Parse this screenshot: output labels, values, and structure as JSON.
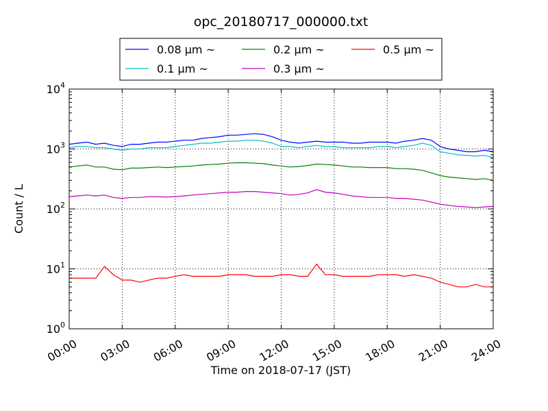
{
  "chart_data": {
    "type": "line",
    "title": "opc_20180717_000000.txt",
    "xlabel": "Time on 2018-07-17 (JST)",
    "ylabel": "Count / L",
    "y_scale": "log",
    "ylim": [
      1,
      10000
    ],
    "xlim": [
      "00:00",
      "24:00"
    ],
    "x_unit": "hours",
    "x_ticks": [
      {
        "h": 0,
        "label": "00:00"
      },
      {
        "h": 3,
        "label": "03:00"
      },
      {
        "h": 6,
        "label": "06:00"
      },
      {
        "h": 9,
        "label": "09:00"
      },
      {
        "h": 12,
        "label": "12:00"
      },
      {
        "h": 15,
        "label": "15:00"
      },
      {
        "h": 18,
        "label": "18:00"
      },
      {
        "h": 21,
        "label": "21:00"
      },
      {
        "h": 24,
        "label": "24:00"
      }
    ],
    "y_ticks": [
      {
        "v": 1,
        "base": "10",
        "exp": "0"
      },
      {
        "v": 10,
        "base": "10",
        "exp": "1"
      },
      {
        "v": 100,
        "base": "10",
        "exp": "2"
      },
      {
        "v": 1000,
        "base": "10",
        "exp": "3"
      },
      {
        "v": 10000,
        "base": "10",
        "exp": "4"
      }
    ],
    "grid": true,
    "legend_position": "top-center",
    "x": [
      0,
      0.5,
      1,
      1.5,
      2,
      2.5,
      3,
      3.5,
      4,
      4.5,
      5,
      5.5,
      6,
      6.5,
      7,
      7.5,
      8,
      8.5,
      9,
      9.5,
      10,
      10.5,
      11,
      11.5,
      12,
      12.5,
      13,
      13.5,
      14,
      14.5,
      15,
      15.5,
      16,
      16.5,
      17,
      17.5,
      18,
      18.5,
      19,
      19.5,
      20,
      20.5,
      21,
      21.5,
      22,
      22.5,
      23,
      23.5,
      24
    ],
    "series": [
      {
        "name": "0.08 μm ~",
        "color": "#0000ff",
        "values": [
          1200,
          1250,
          1300,
          1200,
          1250,
          1150,
          1100,
          1200,
          1200,
          1250,
          1300,
          1300,
          1350,
          1400,
          1400,
          1500,
          1550,
          1600,
          1700,
          1700,
          1750,
          1800,
          1750,
          1600,
          1400,
          1300,
          1250,
          1300,
          1350,
          1300,
          1300,
          1300,
          1250,
          1250,
          1300,
          1300,
          1300,
          1250,
          1350,
          1400,
          1500,
          1400,
          1100,
          1000,
          950,
          900,
          900,
          950,
          900
        ]
      },
      {
        "name": "0.1 μm ~",
        "color": "#00bfbf",
        "values": [
          1050,
          1100,
          1100,
          1050,
          1050,
          1000,
          950,
          1000,
          1000,
          1050,
          1050,
          1050,
          1100,
          1150,
          1200,
          1250,
          1250,
          1300,
          1350,
          1350,
          1400,
          1400,
          1350,
          1250,
          1100,
          1100,
          1050,
          1100,
          1150,
          1100,
          1100,
          1050,
          1050,
          1050,
          1050,
          1100,
          1100,
          1050,
          1100,
          1150,
          1250,
          1150,
          900,
          850,
          800,
          780,
          760,
          780,
          720
        ]
      },
      {
        "name": "0.2 μm ~",
        "color": "#008000",
        "values": [
          500,
          520,
          540,
          500,
          500,
          460,
          450,
          480,
          480,
          490,
          500,
          490,
          500,
          510,
          520,
          540,
          550,
          560,
          580,
          590,
          590,
          580,
          570,
          540,
          520,
          500,
          510,
          530,
          560,
          550,
          540,
          520,
          500,
          500,
          490,
          490,
          490,
          470,
          470,
          460,
          440,
          400,
          360,
          340,
          330,
          320,
          310,
          320,
          300
        ]
      },
      {
        "name": "0.3 μm ~",
        "color": "#bf00bf",
        "values": [
          160,
          165,
          170,
          165,
          170,
          155,
          150,
          155,
          155,
          160,
          160,
          158,
          160,
          165,
          170,
          175,
          180,
          185,
          190,
          190,
          195,
          195,
          190,
          185,
          180,
          170,
          175,
          185,
          210,
          190,
          185,
          175,
          165,
          160,
          155,
          155,
          155,
          150,
          150,
          145,
          140,
          130,
          120,
          115,
          110,
          108,
          105,
          108,
          110
        ]
      },
      {
        "name": "0.5 μm ~",
        "color": "#ff0000",
        "values": [
          7,
          7,
          7,
          7,
          11,
          8,
          6.5,
          6.5,
          6,
          6.5,
          7,
          7,
          7.5,
          8,
          7.5,
          7.5,
          7.5,
          7.5,
          8,
          8,
          8,
          7.5,
          7.5,
          7.5,
          8,
          8,
          7.5,
          7.5,
          12,
          8,
          8,
          7.5,
          7.5,
          7.5,
          7.5,
          8,
          8,
          8,
          7.5,
          8,
          7.5,
          7,
          6,
          5.5,
          5,
          5,
          5.5,
          5,
          5
        ]
      }
    ]
  }
}
